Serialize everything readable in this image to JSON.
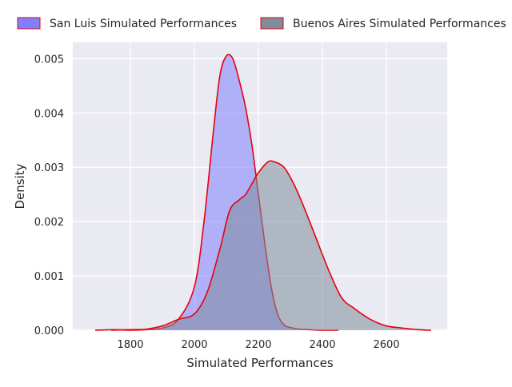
{
  "chart_data": {
    "type": "area",
    "xlabel": "Simulated Performances",
    "ylabel": "Density",
    "xlim": [
      1620,
      2790
    ],
    "ylim": [
      0,
      0.0053
    ],
    "xticks": [
      "1800",
      "2000",
      "2200",
      "2400",
      "2600"
    ],
    "xtick_values": [
      1800,
      2000,
      2200,
      2400,
      2600
    ],
    "yticks": [
      "0.000",
      "0.001",
      "0.002",
      "0.003",
      "0.004",
      "0.005"
    ],
    "ytick_values": [
      0,
      0.001,
      0.002,
      0.003,
      0.004,
      0.005
    ],
    "grid": true,
    "legend_placement": "top, above plot",
    "series": [
      {
        "name": "San Luis Simulated Performances",
        "fill": "#8080ff",
        "edge": "#e8000b",
        "x": [
          1690,
          1750,
          1800,
          1850,
          1900,
          1950,
          2000,
          2030,
          2060,
          2080,
          2100,
          2120,
          2140,
          2160,
          2180,
          2200,
          2220,
          2240,
          2260,
          2280,
          2300,
          2330,
          2360,
          2400,
          2450
        ],
        "y": [
          0,
          1e-05,
          0,
          1e-05,
          4e-05,
          0.0002,
          0.0008,
          0.002,
          0.0037,
          0.0047,
          0.00505,
          0.005,
          0.0046,
          0.0041,
          0.0034,
          0.0025,
          0.0016,
          0.0008,
          0.0003,
          0.0001,
          5e-05,
          2e-05,
          1e-05,
          0,
          0
        ]
      },
      {
        "name": "Buenos Aires Simulated Performances",
        "fill": "#7e8c9c",
        "edge": "#e8000b",
        "x": [
          1740,
          1800,
          1850,
          1900,
          1950,
          2000,
          2040,
          2080,
          2110,
          2140,
          2160,
          2180,
          2200,
          2230,
          2250,
          2280,
          2310,
          2340,
          2380,
          2420,
          2460,
          2500,
          2550,
          2600,
          2650,
          2700,
          2740
        ],
        "y": [
          0,
          1e-05,
          2e-05,
          8e-05,
          0.0002,
          0.0003,
          0.0007,
          0.0015,
          0.0022,
          0.0024,
          0.0025,
          0.0027,
          0.0029,
          0.0031,
          0.0031,
          0.003,
          0.0027,
          0.0023,
          0.0017,
          0.0011,
          0.0006,
          0.0004,
          0.0002,
          8e-05,
          4e-05,
          1e-05,
          0
        ]
      }
    ]
  }
}
